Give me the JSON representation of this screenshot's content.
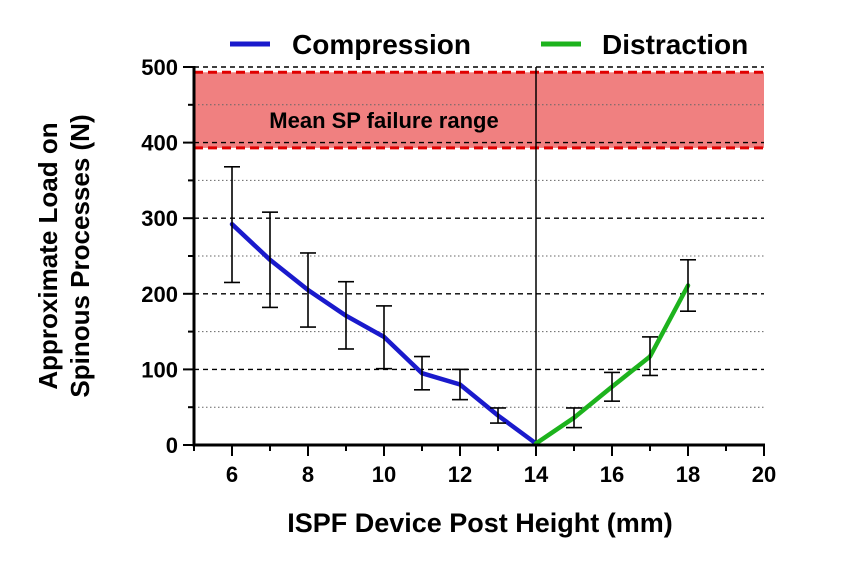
{
  "chart_data": {
    "type": "line",
    "xlabel": "ISPF Device Post Height (mm)",
    "ylabel_lines": [
      "Approximate Load on",
      "Spinous Processes (N)"
    ],
    "xlim": [
      5,
      20
    ],
    "ylim": [
      0,
      500
    ],
    "x_ticks": [
      6,
      8,
      10,
      12,
      14,
      16,
      18,
      20
    ],
    "y_ticks": [
      0,
      100,
      200,
      300,
      400,
      500
    ],
    "grid": "horizontal dashed (major) and dotted (minor)",
    "legend_position": "top",
    "band": {
      "label": "Mean SP failure range",
      "y_min": 393,
      "y_max": 493,
      "color": "#f08080"
    },
    "divider_x": 14,
    "series": [
      {
        "name": "Compression",
        "color": "#1a1acc",
        "x": [
          6,
          7,
          8,
          9,
          10,
          11,
          12,
          13,
          14
        ],
        "values": [
          292,
          245,
          205,
          171,
          143,
          95,
          80,
          39,
          2
        ],
        "error_low": [
          215,
          182,
          156,
          127,
          101,
          73,
          60,
          29,
          2
        ],
        "error_high": [
          368,
          308,
          254,
          216,
          184,
          117,
          100,
          49,
          2
        ]
      },
      {
        "name": "Distraction",
        "color": "#1db31d",
        "x": [
          14,
          15,
          16,
          17,
          18
        ],
        "values": [
          2,
          36,
          77,
          117,
          211
        ],
        "error_low": [
          2,
          23,
          58,
          92,
          177
        ],
        "error_high": [
          2,
          49,
          96,
          143,
          245
        ]
      }
    ]
  }
}
